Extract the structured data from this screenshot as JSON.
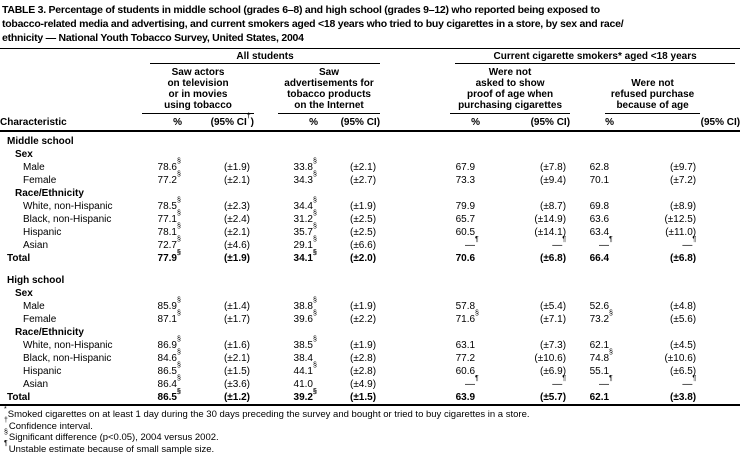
{
  "colors": {
    "text": "#000000",
    "background": "#ffffff",
    "rule": "#000000"
  },
  "title": "TABLE 3. Percentage of students in middle school (grades 6–8) and high school (grades 9–12) who reported being exposed to\ntobacco-related media and advertising, and current smokers aged <18 years who tried to buy cigarettes in a store, by sex and race/\nethnicity — National Youth Tobacco Survey, United States, 2004",
  "table": {
    "characteristic_header": "Characteristic",
    "groups": [
      {
        "label": "All students"
      },
      {
        "label": "Current cigarette smokers* aged <18 years"
      }
    ],
    "subgroups": [
      {
        "label": "Saw actors\non television\nor in movies\nusing tobacco"
      },
      {
        "label": "Saw\nadvertisements for\ntobacco products\non the Internet"
      },
      {
        "label": "Were not\nasked to show\nproof of age when\npurchasing cigarettes"
      },
      {
        "label": "Were not\nrefused purchase\nbecause of age"
      }
    ],
    "measures": [
      {
        "pct": "%",
        "ci_pre": "(95% CI",
        "ci_sup": "†",
        "ci_post": ")"
      },
      {
        "pct": "%",
        "ci_pre": "(95% CI",
        "ci_sup": "",
        "ci_post": ")"
      },
      {
        "pct": "%",
        "ci_pre": "(95% CI",
        "ci_sup": "",
        "ci_post": ")"
      },
      {
        "pct": "%",
        "ci_pre": "(95% CI",
        "ci_sup": "",
        "ci_post": ")"
      }
    ],
    "rows": [
      {
        "label": "Middle school",
        "level": "section",
        "cells": []
      },
      {
        "label": "Sex",
        "level": "subsection",
        "cells": []
      },
      {
        "label": "Male",
        "level": "item",
        "cells": [
          [
            "78.6",
            "§"
          ],
          [
            "(±1.9)",
            ""
          ],
          [
            "33.8",
            "§"
          ],
          [
            "(±2.1)",
            ""
          ],
          [
            "67.9",
            ""
          ],
          [
            "(±7.8)",
            ""
          ],
          [
            "62.8",
            ""
          ],
          [
            "(±9.7)",
            ""
          ]
        ]
      },
      {
        "label": "Female",
        "level": "item",
        "cells": [
          [
            "77.2",
            "§"
          ],
          [
            "(±2.1)",
            ""
          ],
          [
            "34.3",
            "§"
          ],
          [
            "(±2.7)",
            ""
          ],
          [
            "73.3",
            ""
          ],
          [
            "(±9.4)",
            ""
          ],
          [
            "70.1",
            ""
          ],
          [
            "(±7.2)",
            ""
          ]
        ]
      },
      {
        "label": "Race/Ethnicity",
        "level": "subsection",
        "cells": []
      },
      {
        "label": "White, non-Hispanic",
        "level": "item",
        "cells": [
          [
            "78.5",
            "§"
          ],
          [
            "(±2.3)",
            ""
          ],
          [
            "34.4",
            "§"
          ],
          [
            "(±1.9)",
            ""
          ],
          [
            "79.9",
            ""
          ],
          [
            "(±8.7)",
            ""
          ],
          [
            "69.8",
            ""
          ],
          [
            "(±8.9)",
            ""
          ]
        ]
      },
      {
        "label": "Black, non-Hispanic",
        "level": "item",
        "cells": [
          [
            "77.1",
            "§"
          ],
          [
            "(±2.4)",
            ""
          ],
          [
            "31.2",
            "§"
          ],
          [
            "(±2.5)",
            ""
          ],
          [
            "65.7",
            ""
          ],
          [
            "(±14.9)",
            ""
          ],
          [
            "63.6",
            ""
          ],
          [
            "(±12.5)",
            ""
          ]
        ]
      },
      {
        "label": "Hispanic",
        "level": "item",
        "cells": [
          [
            "78.1",
            "§"
          ],
          [
            "(±2.1)",
            ""
          ],
          [
            "35.7",
            "§"
          ],
          [
            "(±2.5)",
            ""
          ],
          [
            "60.5",
            ""
          ],
          [
            "(±14.1)",
            ""
          ],
          [
            "63.4",
            ""
          ],
          [
            "(±11.0)",
            ""
          ]
        ]
      },
      {
        "label": "Asian",
        "level": "item",
        "cells": [
          [
            "72.7",
            "§"
          ],
          [
            "(±4.6)",
            ""
          ],
          [
            "29.1",
            "§"
          ],
          [
            "(±6.6)",
            ""
          ],
          [
            "—",
            "¶"
          ],
          [
            "—",
            "¶"
          ],
          [
            "—",
            "¶"
          ],
          [
            "—",
            "¶"
          ]
        ]
      },
      {
        "label": "Total",
        "level": "total",
        "cells": [
          [
            "77.9",
            "§"
          ],
          [
            "(±1.9)",
            ""
          ],
          [
            "34.1",
            "§"
          ],
          [
            "(±2.0)",
            ""
          ],
          [
            "70.6",
            ""
          ],
          [
            "(±6.8)",
            ""
          ],
          [
            "66.4",
            ""
          ],
          [
            "(±6.8)",
            ""
          ]
        ]
      },
      {
        "level": "spacer"
      },
      {
        "label": "High school",
        "level": "section",
        "cells": []
      },
      {
        "label": "Sex",
        "level": "subsection",
        "cells": []
      },
      {
        "label": "Male",
        "level": "item",
        "cells": [
          [
            "85.9",
            "§"
          ],
          [
            "(±1.4)",
            ""
          ],
          [
            "38.8",
            "§"
          ],
          [
            "(±1.9)",
            ""
          ],
          [
            "57.8",
            ""
          ],
          [
            "(±5.4)",
            ""
          ],
          [
            "52.6",
            ""
          ],
          [
            "(±4.8)",
            ""
          ]
        ]
      },
      {
        "label": "Female",
        "level": "item",
        "cells": [
          [
            "87.1",
            "§"
          ],
          [
            "(±1.7)",
            ""
          ],
          [
            "39.6",
            "§"
          ],
          [
            "(±2.2)",
            ""
          ],
          [
            "71.6",
            "§"
          ],
          [
            "(±7.1)",
            ""
          ],
          [
            "73.2",
            "§"
          ],
          [
            "(±5.6)",
            ""
          ]
        ]
      },
      {
        "label": "Race/Ethnicity",
        "level": "subsection",
        "cells": []
      },
      {
        "label": "White, non-Hispanic",
        "level": "item",
        "cells": [
          [
            "86.9",
            "§"
          ],
          [
            "(±1.6)",
            ""
          ],
          [
            "38.5",
            "§"
          ],
          [
            "(±1.9)",
            ""
          ],
          [
            "63.1",
            ""
          ],
          [
            "(±7.3)",
            ""
          ],
          [
            "62.1",
            ""
          ],
          [
            "(±4.5)",
            ""
          ]
        ]
      },
      {
        "label": "Black, non-Hispanic",
        "level": "item",
        "cells": [
          [
            "84.6",
            "§"
          ],
          [
            "(±2.1)",
            ""
          ],
          [
            "38.4",
            ""
          ],
          [
            "(±2.8)",
            ""
          ],
          [
            "77.2",
            ""
          ],
          [
            "(±10.6)",
            ""
          ],
          [
            "74.8",
            "§"
          ],
          [
            "(±10.6)",
            ""
          ]
        ]
      },
      {
        "label": "Hispanic",
        "level": "item",
        "cells": [
          [
            "86.5",
            "§"
          ],
          [
            "(±1.5)",
            ""
          ],
          [
            "44.1",
            "§"
          ],
          [
            "(±2.8)",
            ""
          ],
          [
            "60.6",
            ""
          ],
          [
            "(±6.9)",
            ""
          ],
          [
            "55.1",
            ""
          ],
          [
            "(±6.5)",
            ""
          ]
        ]
      },
      {
        "label": "Asian",
        "level": "item",
        "cells": [
          [
            "86.4",
            "§"
          ],
          [
            "(±3.6)",
            ""
          ],
          [
            "41.0",
            ""
          ],
          [
            "(±4.9)",
            ""
          ],
          [
            "—",
            "¶"
          ],
          [
            "—",
            "¶"
          ],
          [
            "—",
            "¶"
          ],
          [
            "—",
            "¶"
          ]
        ]
      },
      {
        "label": "Total",
        "level": "total",
        "cells": [
          [
            "86.5",
            "§"
          ],
          [
            "(±1.2)",
            ""
          ],
          [
            "39.2",
            "§"
          ],
          [
            "(±1.5)",
            ""
          ],
          [
            "63.9",
            ""
          ],
          [
            "(±5.7)",
            ""
          ],
          [
            "62.1",
            ""
          ],
          [
            "(±3.8)",
            ""
          ]
        ]
      }
    ]
  },
  "footnotes": [
    {
      "mark": "*",
      "text": "Smoked cigarettes on at least 1 day during the 30 days preceding the survey and bought or tried to buy cigarettes in a store."
    },
    {
      "mark": "†",
      "text": "Confidence interval."
    },
    {
      "mark": "§",
      "text": "Significant difference (p<0.05), 2004 versus 2002."
    },
    {
      "mark": "¶",
      "text": "Unstable estimate because of small sample size."
    }
  ]
}
